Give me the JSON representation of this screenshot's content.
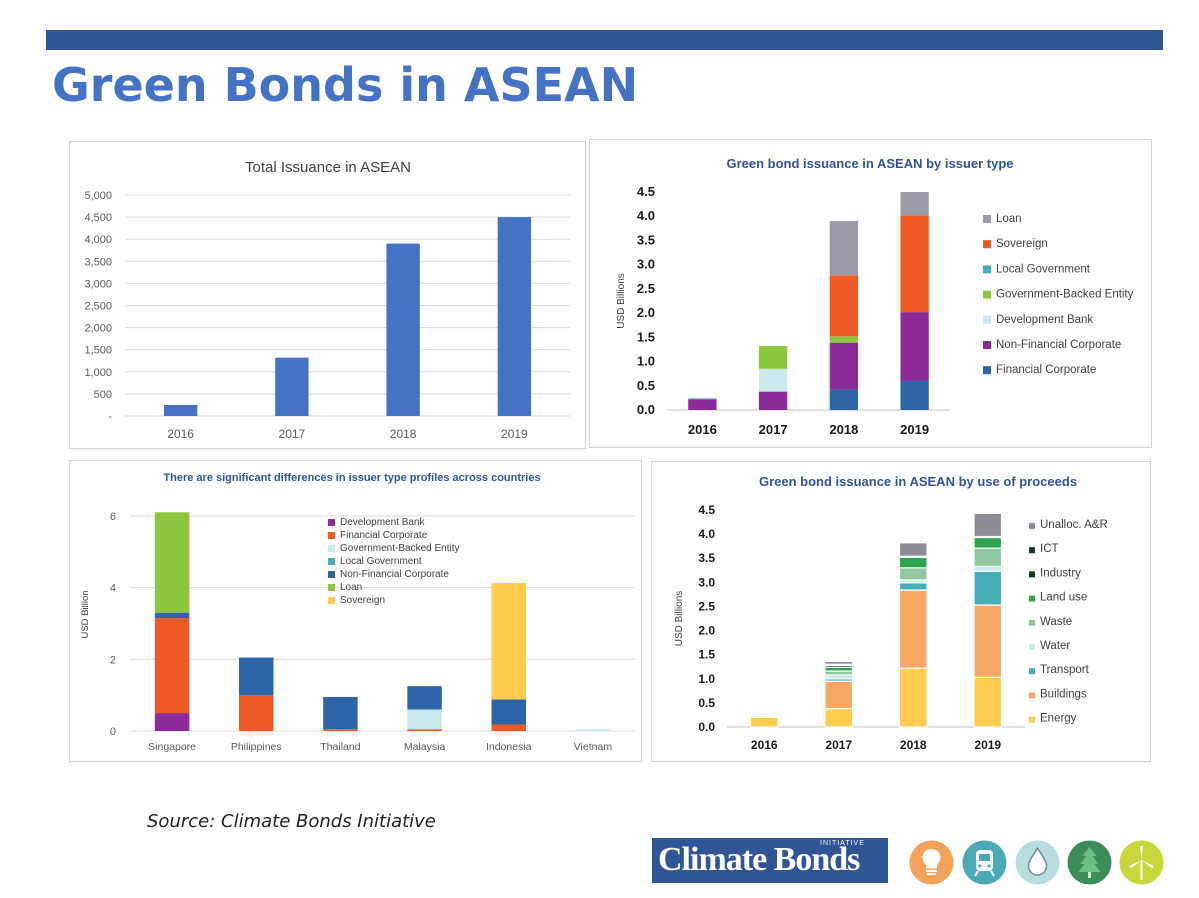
{
  "page": {
    "title": "Green Bonds in ASEAN",
    "source": "Source: Climate Bonds Initiative",
    "logo_text": "Climate Bonds",
    "logo_sup": "INITIATIVE",
    "icons": [
      "lightbulb-icon",
      "train-icon",
      "water-drop-icon",
      "tree-icon",
      "wind-turbine-icon"
    ],
    "icon_colors": [
      "#f4a259",
      "#4aa9b5",
      "#b8dde0",
      "#3d8c5a",
      "#c9d63a"
    ]
  },
  "chart_data": [
    {
      "type": "bar",
      "title": "Total Issuance in ASEAN",
      "categories": [
        "2016",
        "2017",
        "2018",
        "2019"
      ],
      "values": [
        250,
        1320,
        3900,
        4500
      ],
      "ylim": [
        0,
        5000
      ],
      "yticks": [
        "-",
        "500",
        "1,000",
        "1,500",
        "2,000",
        "2,500",
        "3,000",
        "3,500",
        "4,000",
        "4,500",
        "5,000"
      ],
      "grid": true,
      "color": "#4472c4"
    },
    {
      "type": "bar",
      "stacked": true,
      "title": "Green bond issuance in ASEAN by issuer type",
      "ylabel": "USD Billions",
      "categories": [
        "2016",
        "2017",
        "2018",
        "2019"
      ],
      "ylim": [
        0,
        4.5
      ],
      "yticks": [
        "0.0",
        "0.5",
        "1.0",
        "1.5",
        "2.0",
        "2.5",
        "3.0",
        "3.5",
        "4.0",
        "4.5"
      ],
      "legend_position": "right",
      "series": [
        {
          "name": "Financial Corporate",
          "color": "#2e64a8",
          "values": [
            0,
            0,
            0.42,
            0.6
          ]
        },
        {
          "name": "Non-Financial Corporate",
          "color": "#8b2a98",
          "values": [
            0.22,
            0.38,
            0.97,
            1.42
          ]
        },
        {
          "name": "Development Bank",
          "color": "#c9e9eb",
          "values": [
            0,
            0.47,
            0,
            0
          ]
        },
        {
          "name": "Government-Backed Entity",
          "color": "#8cc63f",
          "values": [
            0,
            0.47,
            0.13,
            0
          ]
        },
        {
          "name": "Local Government",
          "color": "#45adb8",
          "values": [
            0.02,
            0,
            0,
            0
          ]
        },
        {
          "name": "Sovereign",
          "color": "#f05a24",
          "values": [
            0,
            0,
            1.26,
            2.0
          ]
        },
        {
          "name": "Loan",
          "color": "#9b9ba7",
          "values": [
            0,
            0,
            1.12,
            0.48
          ]
        }
      ]
    },
    {
      "type": "bar",
      "stacked": true,
      "title": "There are significant differences in issuer type profiles across countries",
      "ylabel": "USD Billion",
      "categories": [
        "Singapore",
        "Philippines",
        "Thailand",
        "Malaysia",
        "Indonesia",
        "Vietnam"
      ],
      "ylim": [
        0,
        6.5
      ],
      "yticks": [
        "0",
        "2",
        "4",
        "6"
      ],
      "legend_position": "top-center",
      "series": [
        {
          "name": "Development Bank",
          "color": "#8b2a98",
          "values": [
            0.5,
            0,
            0,
            0,
            0,
            0
          ]
        },
        {
          "name": "Financial Corporate",
          "color": "#f05a24",
          "values": [
            2.65,
            1.0,
            0.05,
            0.05,
            0.18,
            0
          ]
        },
        {
          "name": "Government-Backed Entity",
          "color": "#c9e9eb",
          "values": [
            0,
            0,
            0,
            0.55,
            0,
            0.05
          ]
        },
        {
          "name": "Local Government",
          "color": "#45adb8",
          "values": [
            0,
            0,
            0,
            0,
            0,
            0
          ]
        },
        {
          "name": "Non-Financial Corporate",
          "color": "#2e64a8",
          "values": [
            0.15,
            1.05,
            0.9,
            0.65,
            0.7,
            0
          ]
        },
        {
          "name": "Loan",
          "color": "#8cc63f",
          "values": [
            2.8,
            0,
            0,
            0,
            0,
            0
          ]
        },
        {
          "name": "Sovereign",
          "color": "#ffcc4d",
          "values": [
            0,
            0,
            0,
            0,
            3.25,
            0
          ]
        }
      ]
    },
    {
      "type": "bar",
      "stacked": true,
      "title": "Green bond issuance in ASEAN by use of proceeds",
      "ylabel": "USD Billions",
      "categories": [
        "2016",
        "2017",
        "2018",
        "2019"
      ],
      "ylim": [
        0,
        4.5
      ],
      "yticks": [
        "0.0",
        "0.5",
        "1.0",
        "1.5",
        "2.0",
        "2.5",
        "3.0",
        "3.5",
        "4.0",
        "4.5"
      ],
      "legend_position": "right",
      "series": [
        {
          "name": "Energy",
          "color": "#ffcc4d",
          "values": [
            0.2,
            0.38,
            1.22,
            1.03
          ]
        },
        {
          "name": "Buildings",
          "color": "#f8a862",
          "values": [
            0,
            0.57,
            1.62,
            1.5
          ]
        },
        {
          "name": "Transport",
          "color": "#45adb8",
          "values": [
            0,
            0.05,
            0.15,
            0.7
          ]
        },
        {
          "name": "Water",
          "color": "#c9e9eb",
          "values": [
            0,
            0.08,
            0.06,
            0.1
          ]
        },
        {
          "name": "Waste",
          "color": "#8ec7a0",
          "values": [
            0,
            0.08,
            0.25,
            0.38
          ]
        },
        {
          "name": "Land use",
          "color": "#2ea44f",
          "values": [
            0,
            0.08,
            0.22,
            0.22
          ]
        },
        {
          "name": "Industry",
          "color": "#0b3d1f",
          "values": [
            0,
            0.04,
            0.02,
            0.02
          ]
        },
        {
          "name": "ICT",
          "color": "#163d2a",
          "values": [
            0,
            0.02,
            0,
            0
          ]
        },
        {
          "name": "Unalloc. A&R",
          "color": "#8c8c96",
          "values": [
            0,
            0.06,
            0.28,
            0.48
          ]
        }
      ]
    }
  ]
}
